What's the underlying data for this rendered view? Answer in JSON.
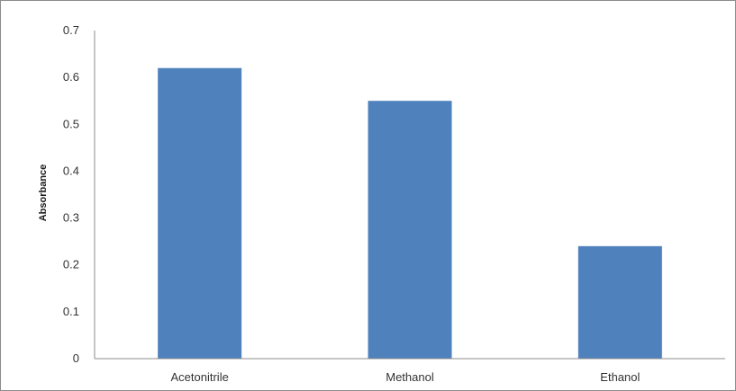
{
  "chart_data": {
    "type": "bar",
    "title": "",
    "xlabel": "",
    "ylabel": "Absorbance",
    "categories": [
      "Acetonitrile",
      "Methanol",
      "Ethanol"
    ],
    "values": [
      0.62,
      0.55,
      0.24
    ],
    "ylim": [
      0,
      0.7
    ],
    "yticks": [
      "0",
      "0.1",
      "0.2",
      "0.3",
      "0.4",
      "0.5",
      "0.6",
      "0.7"
    ],
    "grid": false,
    "legend": "none",
    "bar_color": "#4f81bd",
    "axis_color": "#8c8c8c"
  }
}
